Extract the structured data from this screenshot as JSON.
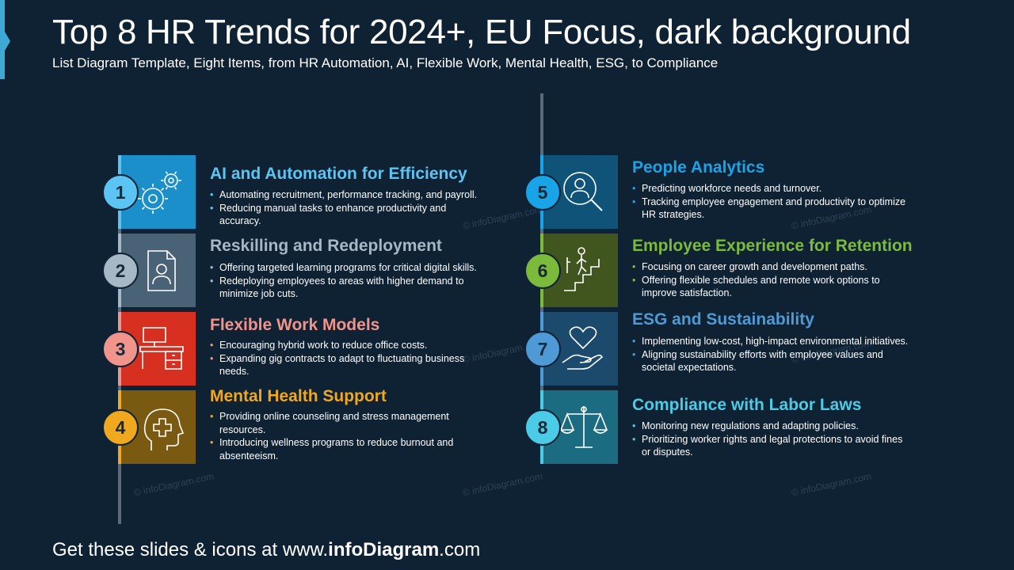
{
  "header": {
    "title": "Top 8 HR Trends for 2024+, EU Focus, dark background",
    "subtitle": "List Diagram Template, Eight Items, from HR Automation, AI, Flexible Work, Mental Health, ESG, to Compliance"
  },
  "footer": {
    "prefix": "Get these slides & icons at www.",
    "brand": "infoDiagram",
    "suffix": ".com"
  },
  "watermark": "© infoDiagram.com",
  "items": [
    {
      "num": "1",
      "title": "AI and Automation for Efficiency",
      "color": "#1a8fc9",
      "title_color": "#5cc4f2",
      "icon": "gears-icon",
      "bullets": [
        "Automating recruitment, performance tracking, and payroll.",
        "Reducing manual tasks to enhance productivity and accuracy."
      ]
    },
    {
      "num": "2",
      "title": "Reskilling and Redeployment",
      "color": "#4a6276",
      "title_color": "#a6b8c6",
      "icon": "resume-document-icon",
      "bullets": [
        "Offering targeted learning programs for critical digital skills.",
        "Redeploying employees to areas with higher demand to minimize job cuts."
      ]
    },
    {
      "num": "3",
      "title": "Flexible Work Models",
      "color": "#d83020",
      "title_color": "#f0948c",
      "icon": "desk-workplace-icon",
      "bullets": [
        "Encouraging hybrid work to reduce office costs.",
        "Expanding gig contracts to adapt to fluctuating business needs."
      ]
    },
    {
      "num": "4",
      "title": "Mental Health Support",
      "color": "#7a5a10",
      "title_color": "#f0a81e",
      "icon": "head-medical-cross-icon",
      "bullets": [
        "Providing online counseling and stress management resources.",
        "Introducing wellness programs to reduce burnout and absenteeism."
      ]
    },
    {
      "num": "5",
      "title": "People Analytics",
      "color": "#0f5478",
      "title_color": "#19a4e8",
      "icon": "person-magnifier-icon",
      "bullets": [
        "Predicting workforce needs and turnover.",
        "Tracking employee engagement and productivity to optimize HR strategies."
      ]
    },
    {
      "num": "6",
      "title": "Employee Experience for Retention",
      "color": "#41561f",
      "title_color": "#7cba3c",
      "icon": "career-stairs-icon",
      "bullets": [
        "Focusing on career growth and development paths.",
        "Offering flexible schedules and remote work options to improve satisfaction."
      ]
    },
    {
      "num": "7",
      "title": "ESG and Sustainability",
      "color": "#1c4a6c",
      "title_color": "#4e9ad6",
      "icon": "heart-hand-icon",
      "bullets": [
        "Implementing low-cost, high-impact environmental initiatives.",
        "Aligning sustainability efforts with employee values and societal expectations."
      ]
    },
    {
      "num": "8",
      "title": "Compliance with Labor Laws",
      "color": "#1b6c80",
      "title_color": "#4ccbe6",
      "icon": "scales-justice-icon",
      "bullets": [
        "Monitoring new regulations and adapting policies.",
        "Prioritizing worker rights and legal protections to avoid fines or disputes."
      ]
    }
  ],
  "circle_colors": [
    "#5cc4f2",
    "#a6b8c6",
    "#f0948c",
    "#f0a81e",
    "#19a4e8",
    "#7cba3c",
    "#4e9ad6",
    "#4ccbe6"
  ]
}
